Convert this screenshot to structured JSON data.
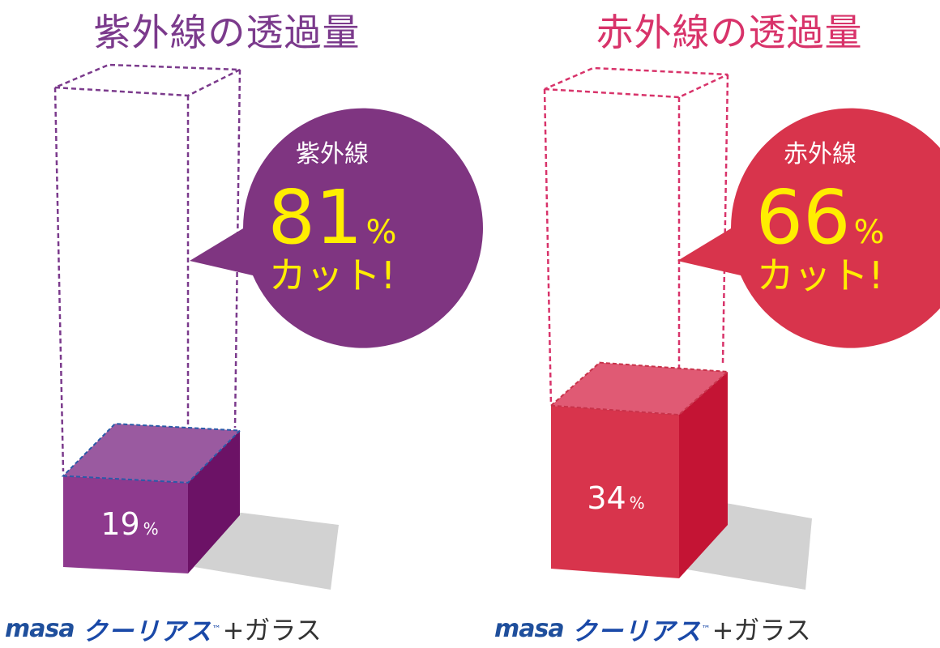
{
  "colors": {
    "uv_title": "#7b3a8c",
    "uv_front": "#8e3a8e",
    "uv_side": "#6c1266",
    "uv_top": "#9a5aa0",
    "uv_bubble": "#7f3581",
    "ir_title": "#d8336a",
    "ir_front": "#d8344c",
    "ir_side": "#c41434",
    "ir_top": "#e05a74",
    "ir_bubble": "#d8344c",
    "highlight": "#ffee00",
    "shadow": "#d2d2d2"
  },
  "chart_data": [
    {
      "type": "bar",
      "title": "紫外線の透過量",
      "categories": [
        "masa クーリアス+ガラス"
      ],
      "values": [
        19
      ],
      "ylim": [
        0,
        100
      ],
      "value_label": "19",
      "unit": "%",
      "callout": {
        "label": "紫外線",
        "value": "81",
        "unit": "%",
        "note": "カット!"
      }
    },
    {
      "type": "bar",
      "title": "赤外線の透過量",
      "categories": [
        "masa クーリアス+ガラス"
      ],
      "values": [
        34
      ],
      "ylim": [
        0,
        100
      ],
      "value_label": "34",
      "unit": "%",
      "callout": {
        "label": "赤外線",
        "value": "66",
        "unit": "%",
        "note": "カット!"
      }
    }
  ],
  "footer": {
    "brand_masa": "masa",
    "brand_product": "クーリアス",
    "brand_tm": "™",
    "brand_suffix": "+ガラス"
  }
}
